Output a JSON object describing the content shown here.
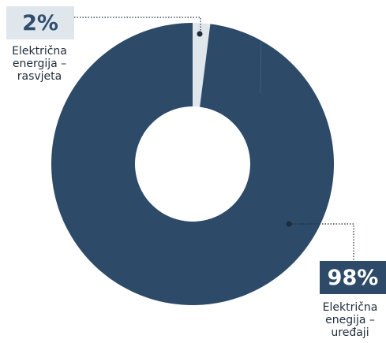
{
  "chart_data": {
    "type": "pie",
    "donut": true,
    "title": "",
    "series": [
      {
        "label": "Električna energija – rasvjeta",
        "value": 2,
        "value_label": "2%",
        "color": "#dfe6ec"
      },
      {
        "label": "Električna enegija – uređaji",
        "value": 98,
        "value_label": "98%",
        "color": "#2d4a68"
      }
    ],
    "legend": "callout labels"
  }
}
